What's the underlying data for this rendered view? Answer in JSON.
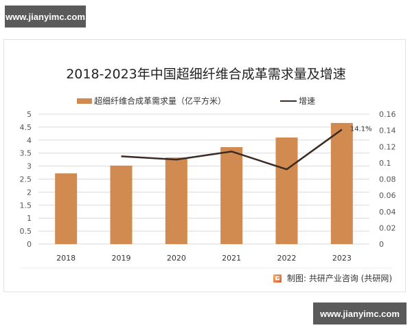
{
  "watermark": {
    "top": "www.jianyimc.com",
    "bottom": "www.jianyimc.com"
  },
  "colors": {
    "bar": "#d18a4f",
    "line": "#3d2a22",
    "grid": "#d9d9d9",
    "axis_text": "#555555"
  },
  "source": {
    "label": "制图: 共研产业咨询 (共研网)"
  },
  "chart_data": {
    "type": "bar+line",
    "title": "2018-2023年中国超细纤维合成革需求量及增速",
    "categories": [
      "2018",
      "2019",
      "2020",
      "2021",
      "2022",
      "2023"
    ],
    "series": [
      {
        "name": "超细纤维合成革需求量（亿平方米）",
        "type": "bar",
        "axis": "left",
        "values": [
          2.72,
          3.02,
          3.33,
          3.73,
          4.1,
          4.66
        ]
      },
      {
        "name": "增速",
        "type": "line",
        "axis": "right",
        "values": [
          null,
          0.108,
          0.104,
          0.114,
          0.092,
          0.141
        ]
      }
    ],
    "annotations": [
      {
        "category": "2023",
        "series": "增速",
        "text": "14.1%"
      }
    ],
    "left_axis": {
      "ylim": [
        0,
        5
      ],
      "ticks": [
        "0",
        "0.5",
        "1",
        "1.5",
        "2",
        "2.5",
        "3",
        "3.5",
        "4",
        "4.5",
        "5"
      ]
    },
    "right_axis": {
      "ylim": [
        0,
        0.16
      ],
      "ticks": [
        "0",
        "0.02",
        "0.04",
        "0.06",
        "0.08",
        "0.1",
        "0.12",
        "0.14",
        "0.16"
      ]
    },
    "xlabel": "",
    "ylabel": "",
    "grid": true,
    "legend_position": "top"
  }
}
